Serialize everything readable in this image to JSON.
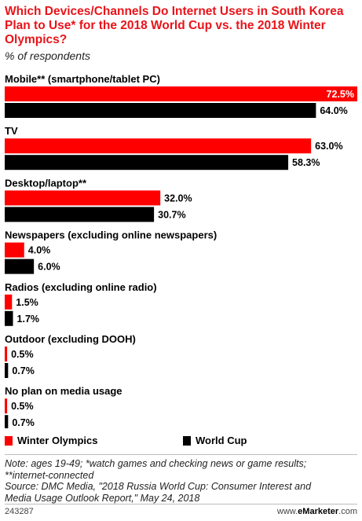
{
  "chart_data": {
    "type": "bar",
    "orientation": "horizontal",
    "title": "Which Devices/Channels Do Internet Users in South Korea Plan to Use* for the 2018 World Cup vs. the 2018 Winter Olympics?",
    "subtitle": "% of respondents",
    "categories": [
      "Mobile** (smartphone/tablet PC)",
      "TV",
      "Desktop/laptop**",
      "Newspapers (excluding online newspapers)",
      "Radios (excluding online radio)",
      "Outdoor (excluding DOOH)",
      "No plan on media usage"
    ],
    "series": [
      {
        "name": "Winter Olympics",
        "color": "#ff0000",
        "values": [
          72.5,
          63.0,
          32.0,
          4.0,
          1.5,
          0.5,
          0.5
        ],
        "labels": [
          "72.5%",
          "63.0%",
          "32.0%",
          "4.0%",
          "1.5%",
          "0.5%",
          "0.5%"
        ]
      },
      {
        "name": "World Cup",
        "color": "#000000",
        "values": [
          64.0,
          58.3,
          30.7,
          6.0,
          1.7,
          0.7,
          0.7
        ],
        "labels": [
          "64.0%",
          "58.3%",
          "30.7%",
          "6.0%",
          "1.7%",
          "0.7%",
          "0.7%"
        ]
      }
    ],
    "xlim": [
      0,
      72.5
    ],
    "grid": false,
    "legend": "bottom"
  },
  "notes": {
    "line1": "Note: ages 19-49; *watch games and checking news or game results;",
    "line2": "**internet-connected",
    "line3": "Source: DMC Media, \"2018 Russia World Cup: Consumer Interest and",
    "line4": "Media Usage Outlook Report,\" May 24, 2018"
  },
  "footer": {
    "id": "243287",
    "brand_prefix": "www.",
    "brand_name": "eMarketer",
    "brand_suffix": ".com"
  }
}
